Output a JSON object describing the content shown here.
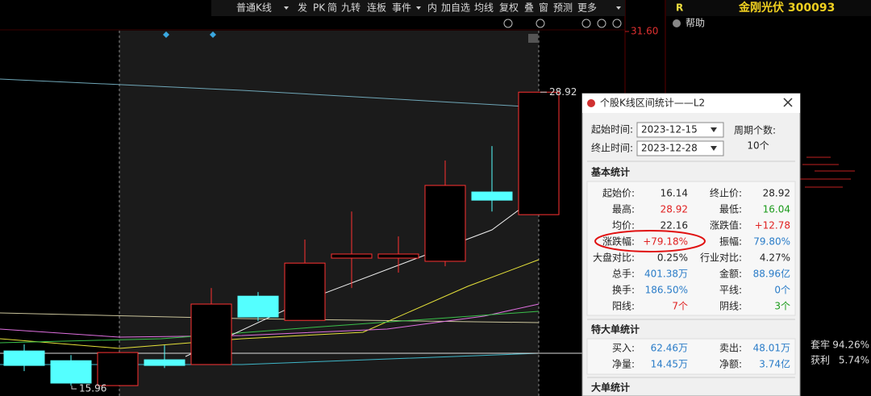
{
  "toolbar": {
    "items": [
      "普通K线",
      "发",
      "PK",
      "简",
      "九转",
      "连板",
      "事件",
      "内",
      "加自选",
      "均线",
      "复权",
      "叠",
      "窗",
      "预测",
      "更多"
    ]
  },
  "stock": {
    "flag": "R",
    "name": "金刚光伏 300093"
  },
  "help": "帮助",
  "kline": {
    "ylim": [
      15.5,
      32.99
    ],
    "up_color": "#ff3232",
    "down_color": "#54ffff",
    "axis_ticks": [
      {
        "value": 31.6,
        "label": "31.60"
      }
    ],
    "high_label": 28.92,
    "low_label": 15.96,
    "candles": [
      {
        "open": 17.49,
        "high": 17.78,
        "low": 16.6,
        "close": 16.85
      },
      {
        "open": 17.06,
        "high": 17.31,
        "low": 15.96,
        "close": 16.07
      },
      {
        "open": 15.96,
        "high": 17.42,
        "low": 15.96,
        "close": 17.42
      },
      {
        "open": 17.1,
        "high": 17.74,
        "low": 16.74,
        "close": 16.85
      },
      {
        "open": 16.89,
        "high": 20.27,
        "low": 16.89,
        "close": 19.56
      },
      {
        "open": 19.91,
        "high": 20.09,
        "low": 18.81,
        "close": 18.99
      },
      {
        "open": 18.84,
        "high": 22.41,
        "low": 18.84,
        "close": 21.37
      },
      {
        "open": 21.59,
        "high": 23.65,
        "low": 20.27,
        "close": 21.77
      },
      {
        "open": 21.59,
        "high": 22.55,
        "low": 20.95,
        "close": 21.77
      },
      {
        "open": 21.45,
        "high": 25.9,
        "low": 21.23,
        "close": 24.8
      },
      {
        "open": 24.51,
        "high": 26.54,
        "low": 23.65,
        "close": 24.15
      },
      {
        "open": 23.51,
        "high": 28.92,
        "low": 23.51,
        "close": 28.92
      }
    ]
  },
  "dialog": {
    "title": "个股K线区间统计——L2",
    "start_label": "起始时间:",
    "start": "2023-12-15",
    "end_label": "终止时间:",
    "end": "2023-12-28",
    "period_label": "周期个数:",
    "period": "10个",
    "basic_title": "基本统计",
    "basic": [
      [
        {
          "label": "起始价:",
          "value": "16.14",
          "color": "#222"
        },
        {
          "label": "终止价:",
          "value": "28.92",
          "color": "#222"
        }
      ],
      [
        {
          "label": "最高:",
          "value": "28.92",
          "color": "#e02020"
        },
        {
          "label": "最低:",
          "value": "16.04",
          "color": "#1a9a1a"
        }
      ],
      [
        {
          "label": "均价:",
          "value": "22.16",
          "color": "#222"
        },
        {
          "label": "涨跌值:",
          "value": "+12.78",
          "color": "#e02020"
        }
      ],
      [
        {
          "label": "涨跌幅:",
          "value": "+79.18%",
          "color": "#e02020"
        },
        {
          "label": "振幅:",
          "value": "79.80%",
          "color": "#2a7cc8"
        }
      ],
      [
        {
          "label": "大盘对比:",
          "value": "0.25%",
          "color": "#222"
        },
        {
          "label": "行业对比:",
          "value": "4.27%",
          "color": "#222"
        }
      ],
      [
        {
          "label": "总手:",
          "value": "401.38万",
          "color": "#2a7cc8"
        },
        {
          "label": "金额:",
          "value": "88.96亿",
          "color": "#2a7cc8"
        }
      ],
      [
        {
          "label": "换手:",
          "value": "186.50%",
          "color": "#2a7cc8"
        },
        {
          "label": "平线:",
          "value": "0个",
          "color": "#2a7cc8"
        }
      ],
      [
        {
          "label": "阳线:",
          "value": "7个",
          "color": "#e02020"
        },
        {
          "label": "阴线:",
          "value": "3个",
          "color": "#1a9a1a"
        }
      ]
    ],
    "big_title": "特大单统计",
    "big": [
      [
        {
          "label": "买入:",
          "value": "62.46万",
          "color": "#2a7cc8"
        },
        {
          "label": "卖出:",
          "value": "48.01万",
          "color": "#2a7cc8"
        }
      ],
      [
        {
          "label": "净量:",
          "value": "14.45万",
          "color": "#2a7cc8"
        },
        {
          "label": "净额:",
          "value": "3.74亿",
          "color": "#2a7cc8"
        }
      ]
    ],
    "large_title": "大单统计"
  },
  "chips": [
    {
      "label": "套牢",
      "value": "94.26%"
    },
    {
      "label": "获利",
      "value": "5.74%"
    }
  ]
}
